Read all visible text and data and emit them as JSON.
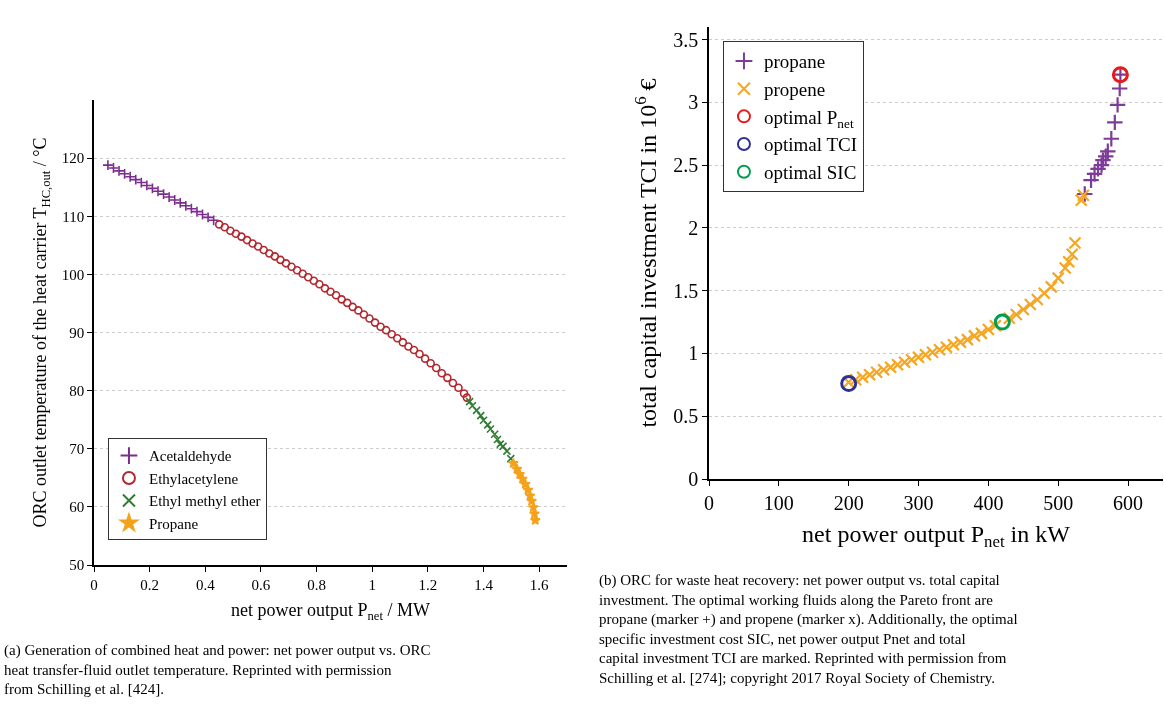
{
  "chart_data": [
    {
      "type": "scatter",
      "xlabel": "net power output P$_{net}$ / MW",
      "ylabel": "ORC outlet temperature of the heat carrier T$_{HC,out}$ / °C",
      "xlim": [
        0,
        1.7
      ],
      "xticks": [
        0,
        0.2,
        0.4,
        0.6,
        0.8,
        1,
        1.2,
        1.4,
        1.6
      ],
      "ylim": [
        50,
        130
      ],
      "yticks": [
        50,
        60,
        70,
        80,
        90,
        100,
        110,
        120
      ],
      "grid": "y",
      "legend": "bottom left",
      "annotations": [
        "(a) Generation of combined heat and power: net power output vs. ORC heat transfer-fluid outlet temperature. Reprinted with permission from Schilling et al. [424]."
      ],
      "series": [
        {
          "name": "Acetaldehyde",
          "color": "#7b2d8e",
          "marker": "cross",
          "x": [
            0.05,
            0.07,
            0.09,
            0.11,
            0.13,
            0.15,
            0.17,
            0.19,
            0.21,
            0.23,
            0.25,
            0.27,
            0.29,
            0.31,
            0.33,
            0.35,
            0.37,
            0.39,
            0.41,
            0.43
          ],
          "values": [
            118.8,
            118.3,
            117.8,
            117.3,
            116.8,
            116.3,
            115.8,
            115.3,
            114.8,
            114.3,
            113.8,
            113.3,
            112.8,
            112.3,
            111.8,
            111.3,
            110.8,
            110.3,
            109.8,
            109.3
          ]
        },
        {
          "name": "Ethylacetylene",
          "color": "#b2282f",
          "marker": "circle",
          "x": [
            0.45,
            0.47,
            0.49,
            0.51,
            0.53,
            0.55,
            0.57,
            0.59,
            0.61,
            0.63,
            0.65,
            0.67,
            0.69,
            0.71,
            0.73,
            0.75,
            0.77,
            0.79,
            0.81,
            0.83,
            0.85,
            0.87,
            0.89,
            0.91,
            0.93,
            0.95,
            0.97,
            0.99,
            1.01,
            1.03,
            1.05,
            1.07,
            1.09,
            1.11,
            1.13,
            1.15,
            1.17,
            1.19,
            1.21,
            1.23,
            1.25,
            1.27,
            1.29,
            1.31,
            1.33,
            1.34
          ],
          "values": [
            108.6,
            108.1,
            107.5,
            107.0,
            106.5,
            105.9,
            105.3,
            104.8,
            104.2,
            103.6,
            103.1,
            102.5,
            101.9,
            101.3,
            100.7,
            100.1,
            99.5,
            98.9,
            98.3,
            97.6,
            97.0,
            96.4,
            95.7,
            95.1,
            94.4,
            93.8,
            93.1,
            92.4,
            91.7,
            91.0,
            90.4,
            89.7,
            89.0,
            88.3,
            87.6,
            87.0,
            86.3,
            85.5,
            84.7,
            83.9,
            83.0,
            82.2,
            81.3,
            80.5,
            79.5,
            78.8
          ]
        },
        {
          "name": "Ethyl methyl ether",
          "color": "#2e7d32",
          "marker": "x",
          "x": [
            1.35,
            1.36,
            1.375,
            1.39,
            1.4,
            1.415,
            1.425,
            1.44,
            1.45,
            1.46,
            1.47,
            1.484,
            1.498
          ],
          "values": [
            78.1,
            77.4,
            76.6,
            75.7,
            74.9,
            74.1,
            73.4,
            72.5,
            71.6,
            70.8,
            70.4,
            69.6,
            68.3
          ]
        },
        {
          "name": "Propane",
          "color": "#f5a21b",
          "marker": "star",
          "x": [
            1.507,
            1.52,
            1.53,
            1.54,
            1.55,
            1.56,
            1.567,
            1.573,
            1.579,
            1.583,
            1.586
          ],
          "values": [
            67.5,
            66.5,
            65.6,
            64.8,
            63.9,
            62.9,
            61.9,
            61.0,
            59.9,
            58.8,
            57.7
          ]
        }
      ]
    },
    {
      "type": "scatter",
      "xlabel": "net power output P$_{net}$ in kW",
      "ylabel": "total capital investment TCI in 10$^{6}$ €",
      "xlim": [
        0,
        650
      ],
      "xticks": [
        0,
        100,
        200,
        300,
        400,
        500,
        600
      ],
      "ylim": [
        0,
        3.6
      ],
      "yticks": [
        0,
        0.5,
        1,
        1.5,
        2,
        2.5,
        3,
        3.5
      ],
      "grid": "y",
      "legend": "top left",
      "annotations": [
        "(b) ORC for waste heat recovery: net power output vs. total capital investment. The optimal working fluids along the Pareto front are propane (marker +) and propene (marker x). Additionally, the optimal specific investment cost SIC, net power output Pnet and total capital investment TCI are marked. Reprinted with permission from Schilling et al. [274]; copyright 2017 Royal Society of Chemistry."
      ],
      "series": [
        {
          "name": "propane",
          "color": "#7d3c98",
          "marker": "cross",
          "x": [
            538,
            547,
            552,
            557,
            562,
            564,
            568,
            571,
            576,
            581,
            585,
            588,
            589
          ],
          "values": [
            2.27,
            2.38,
            2.43,
            2.47,
            2.5,
            2.54,
            2.57,
            2.61,
            2.71,
            2.84,
            2.98,
            3.11,
            3.22
          ]
        },
        {
          "name": "propene",
          "color": "#f5a623",
          "marker": "x",
          "x": [
            200,
            210,
            220,
            230,
            240,
            250,
            260,
            270,
            280,
            290,
            300,
            310,
            320,
            330,
            340,
            350,
            360,
            370,
            380,
            390,
            400,
            410,
            420,
            430,
            440,
            450,
            460,
            470,
            480,
            490,
            500,
            510,
            515,
            520,
            524,
            533,
            536
          ],
          "values": [
            0.77,
            0.79,
            0.81,
            0.83,
            0.85,
            0.87,
            0.89,
            0.91,
            0.93,
            0.95,
            0.97,
            0.99,
            1.01,
            1.03,
            1.05,
            1.07,
            1.09,
            1.11,
            1.14,
            1.16,
            1.19,
            1.22,
            null,
            1.28,
            1.31,
            1.35,
            1.39,
            1.43,
            1.48,
            1.53,
            1.6,
            1.68,
            1.73,
            1.79,
            1.88,
            2.22,
            2.26
          ]
        },
        {
          "name": "optimal P$_{net}$",
          "color": "#e41a1c",
          "marker": "circle",
          "x": [
            589
          ],
          "values": [
            3.22
          ]
        },
        {
          "name": "optimal TCI",
          "color": "#2e3192",
          "marker": "circle",
          "x": [
            200
          ],
          "values": [
            0.76
          ]
        },
        {
          "name": "optimal SIC",
          "color": "#009e4f",
          "marker": "circle",
          "x": [
            420
          ],
          "values": [
            1.25
          ]
        }
      ]
    }
  ]
}
